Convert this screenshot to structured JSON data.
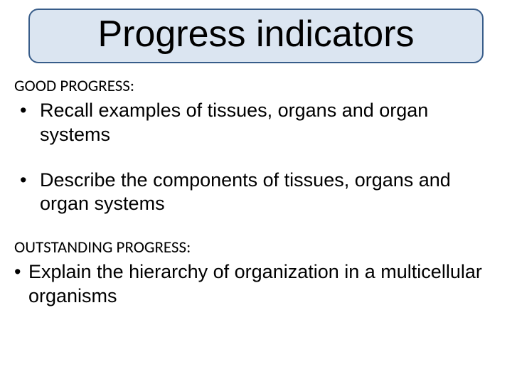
{
  "title": "Progress indicators",
  "sections": [
    {
      "heading": "GOOD PROGRESS:",
      "bullets": [
        "Recall examples of tissues, organs and organ systems",
        "Describe the components of tissues, organs and organ systems"
      ]
    },
    {
      "heading": "OUTSTANDING PROGRESS:",
      "bullets": [
        "Explain the hierarchy of organization in a multicellular organisms"
      ]
    }
  ],
  "style": {
    "title_box_bg": "#dbe5f1",
    "title_box_border": "#385d8a",
    "title_fontsize": 52,
    "heading_fontsize": 23,
    "bullet_fontsize": 27,
    "text_color": "#000000",
    "background": "#ffffff",
    "font_title": "Comic Sans MS",
    "font_heading": "Segoe UI",
    "font_body": "Comic Sans MS"
  }
}
